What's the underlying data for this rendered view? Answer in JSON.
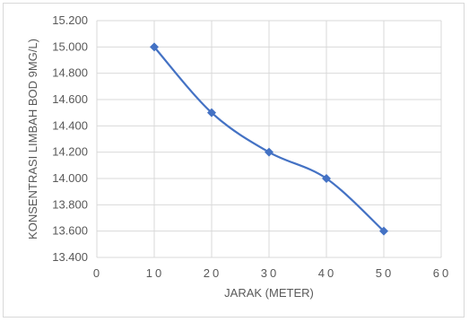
{
  "chart_data": {
    "type": "scatter",
    "title": "",
    "xlabel": "JARAK (METER)",
    "ylabel": "KONSENTRASI LIMBAH BOD 9MG/L)",
    "xlim": [
      0,
      60
    ],
    "ylim": [
      13.4,
      15.2
    ],
    "x_ticks": [
      "0",
      "10",
      "20",
      "30",
      "40",
      "50",
      "60"
    ],
    "y_ticks": [
      "13.400",
      "13.600",
      "13.800",
      "14.000",
      "14.200",
      "14.400",
      "14.600",
      "14.800",
      "15.000",
      "15.200"
    ],
    "grid": true,
    "smooth_line": true,
    "marker": "diamond",
    "series": [
      {
        "x": [
          10,
          20,
          30,
          40,
          50
        ],
        "y": [
          15.0,
          14.5,
          14.2,
          14.0,
          13.6
        ],
        "color": "#4472c4"
      }
    ]
  }
}
